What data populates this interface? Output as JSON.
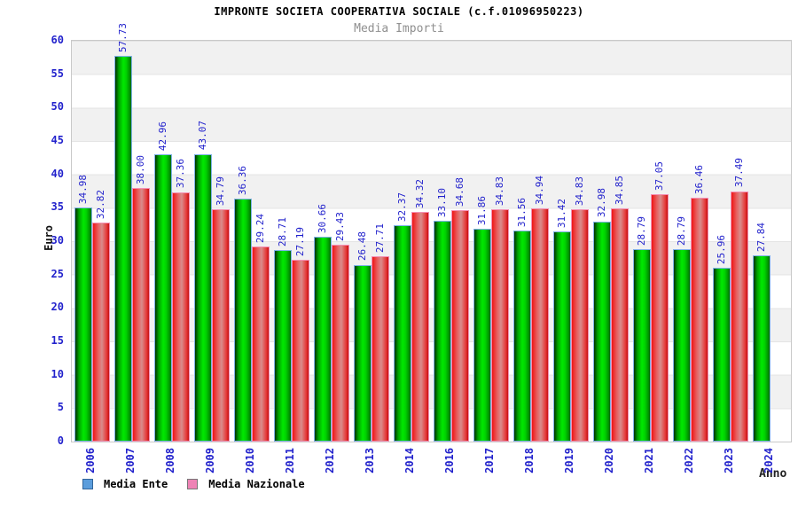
{
  "title": "IMPRONTE SOCIETA COOPERATIVA SOCIALE (c.f.01096950223)",
  "subtitle": "Media Importi",
  "y_axis": {
    "label": "Euro",
    "ticks": [
      0,
      5,
      10,
      15,
      20,
      25,
      30,
      35,
      40,
      45,
      50,
      55,
      60
    ],
    "max": 60
  },
  "x_axis": {
    "label": "Anno"
  },
  "legend": {
    "items": [
      {
        "label": "Media Ente",
        "swatch_color": "#5b9ddc",
        "swatch_border": "#33669b"
      },
      {
        "label": "Media Nazionale",
        "swatch_color": "#ee83b5",
        "swatch_border": "#777777"
      }
    ]
  },
  "colors": {
    "label_blue": "#2222cc",
    "subtitle_gray": "#8f8f8f",
    "band_gray": "#f1f1f1",
    "bar_green": "#00cc00",
    "bar_red": "#ee3333",
    "bar_green_border": "#7fb2e8",
    "bar_red_border": "#f490b4"
  },
  "chart_data": {
    "type": "bar",
    "title": "IMPRONTE SOCIETA COOPERATIVA SOCIALE (c.f.01096950223)",
    "subtitle": "Media Importi",
    "xlabel": "Anno",
    "ylabel": "Euro",
    "ylim": [
      0,
      60
    ],
    "y_tick_step": 5,
    "grid": "horizontal-bands-alternating",
    "legend_position": "bottom-left",
    "bar_label_rotation": 90,
    "categories": [
      "2006",
      "2007",
      "2008",
      "2009",
      "2010",
      "2011",
      "2012",
      "2013",
      "2014",
      "2016",
      "2017",
      "2018",
      "2019",
      "2020",
      "2021",
      "2022",
      "2023",
      "2024"
    ],
    "series": [
      {
        "name": "Media Ente",
        "color": "green",
        "values": [
          34.98,
          57.73,
          42.96,
          43.07,
          36.36,
          28.71,
          30.66,
          26.48,
          32.37,
          33.1,
          31.86,
          31.56,
          31.42,
          32.98,
          28.79,
          28.79,
          25.96,
          27.84
        ]
      },
      {
        "name": "Media Nazionale",
        "color": "red",
        "values": [
          32.82,
          38.0,
          37.36,
          34.79,
          29.24,
          27.19,
          29.43,
          27.71,
          34.32,
          34.68,
          34.83,
          34.94,
          34.83,
          34.85,
          37.05,
          36.46,
          37.49,
          null
        ]
      }
    ]
  }
}
